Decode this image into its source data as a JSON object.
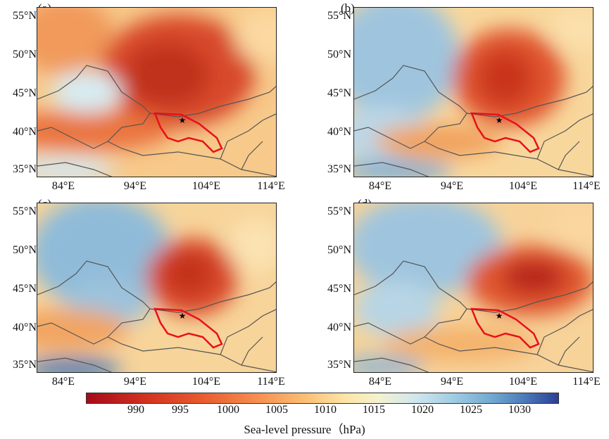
{
  "panels": [
    {
      "label": "(a)"
    },
    {
      "label": "(b)"
    },
    {
      "label": "(c)"
    },
    {
      "label": "(d)"
    }
  ],
  "lat_labels": [
    "55°N",
    "50°N",
    "45°N",
    "40°N",
    "35°N"
  ],
  "lon_labels": [
    "84°E",
    "94°E",
    "104°E",
    "114°E"
  ],
  "colorbar": {
    "ticks": [
      "990",
      "995",
      "1000",
      "1005",
      "1010",
      "1015",
      "1020",
      "1025",
      "1030"
    ],
    "label": "Sea-level pressure（hPa)",
    "colors": [
      "#a50a1a",
      "#e8592e",
      "#fbbd74",
      "#f3f2d0",
      "#9fcbe2",
      "#2c3f96"
    ]
  },
  "marker": "star",
  "region_outline_color": "#e8101a",
  "border_color": "#555555"
}
